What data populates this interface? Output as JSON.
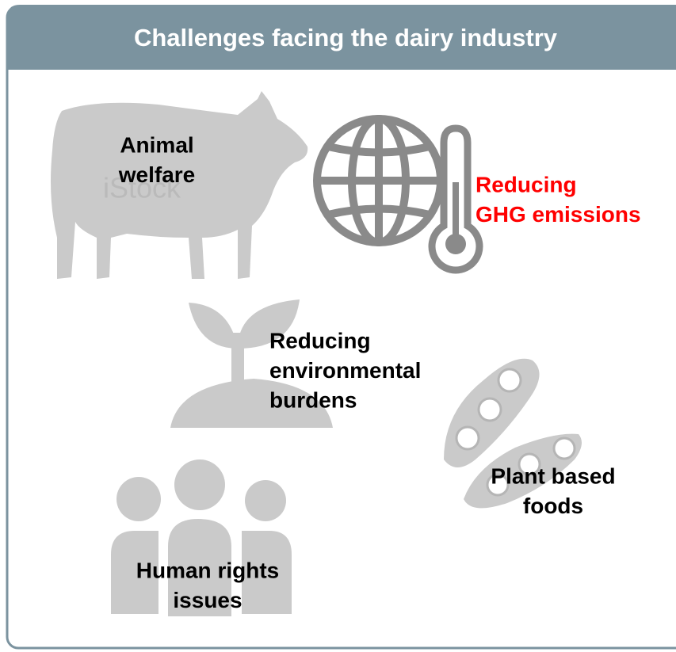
{
  "header": {
    "title": "Challenges facing the dairy industry"
  },
  "watermark": "iStock",
  "items": [
    {
      "lines": [
        "Animal",
        "welfare"
      ],
      "color": "#000000"
    },
    {
      "lines": [
        "Reducing",
        "GHG emissions"
      ],
      "color": "#ff0000"
    },
    {
      "lines": [
        "Reducing",
        "environmental",
        "burdens"
      ],
      "color": "#000000"
    },
    {
      "lines": [
        "Plant based",
        "foods"
      ],
      "color": "#000000"
    },
    {
      "lines": [
        "Human rights",
        "issues"
      ],
      "color": "#000000"
    }
  ]
}
